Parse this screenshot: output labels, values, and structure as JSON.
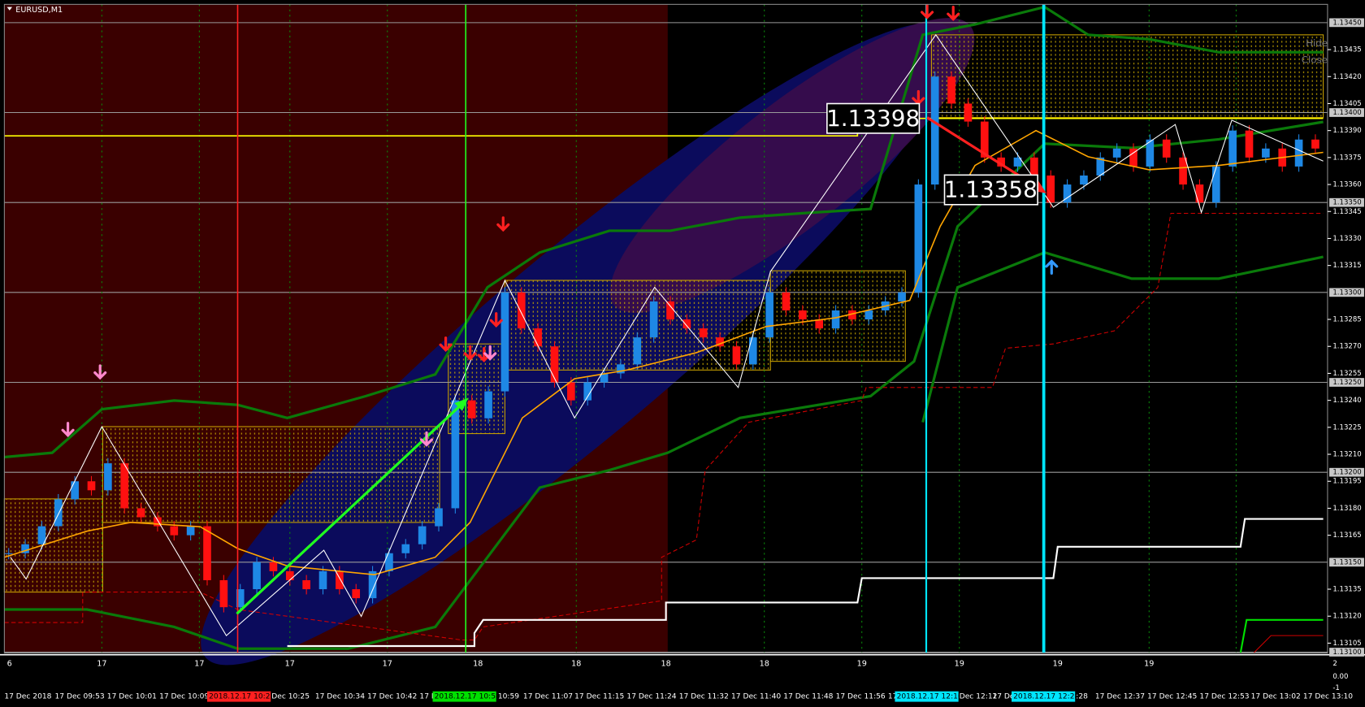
{
  "title": "EURUSD,M1",
  "buttons": {
    "hide": "Hide",
    "close": "Close"
  },
  "price_labels": [
    "1.13398",
    "1.13358"
  ],
  "chart_data": {
    "type": "candlestick",
    "closes": [
      1.13155,
      1.1316,
      1.1317,
      1.13185,
      1.13195,
      1.1319,
      1.13205,
      1.1318,
      1.13175,
      1.1317,
      1.13165,
      1.1317,
      1.1314,
      1.13125,
      1.13135,
      1.1315,
      1.13145,
      1.1314,
      1.13135,
      1.13145,
      1.13135,
      1.1313,
      1.13145,
      1.13155,
      1.1316,
      1.1317,
      1.1318,
      1.1324,
      1.1323,
      1.13245,
      1.133,
      1.1328,
      1.1327,
      1.1325,
      1.1324,
      1.1325,
      1.13255,
      1.1326,
      1.13275,
      1.13295,
      1.13285,
      1.1328,
      1.13275,
      1.1327,
      1.1326,
      1.13275,
      1.133,
      1.1329,
      1.13285,
      1.1328,
      1.1329,
      1.13285,
      1.1329,
      1.13295,
      1.133,
      1.1336,
      1.1342,
      1.13405,
      1.13395,
      1.13375,
      1.1337,
      1.13375,
      1.13365,
      1.1335,
      1.1336,
      1.13365,
      1.13375,
      1.1338,
      1.1337,
      1.13385,
      1.13375,
      1.1336,
      1.1335,
      1.1337,
      1.1339,
      1.13375,
      1.1338,
      1.1337,
      1.13385,
      1.1338
    ],
    "up_color": "#1e88e5",
    "down_color": "#ff1010",
    "ylim": [
      1.131,
      1.1345
    ],
    "yticks": [
      {
        "value": 1.13435,
        "label": "1.13435"
      },
      {
        "value": 1.1342,
        "label": "1.13420"
      },
      {
        "value": 1.13405,
        "label": "1.13405"
      },
      {
        "value": 1.1339,
        "label": "1.13390"
      },
      {
        "value": 1.13375,
        "label": "1.13375"
      },
      {
        "value": 1.1336,
        "label": "1.13360"
      },
      {
        "value": 1.13345,
        "label": "1.13345"
      },
      {
        "value": 1.1333,
        "label": "1.13330"
      },
      {
        "value": 1.13315,
        "label": "1.13315"
      },
      {
        "value": 1.13285,
        "label": "1.13285"
      },
      {
        "value": 1.1327,
        "label": "1.13270"
      },
      {
        "value": 1.13255,
        "label": "1.13255"
      },
      {
        "value": 1.1324,
        "label": "1.13240"
      },
      {
        "value": 1.13225,
        "label": "1.13225"
      },
      {
        "value": 1.1321,
        "label": "1.13210"
      },
      {
        "value": 1.13195,
        "label": "1.13195"
      },
      {
        "value": 1.1318,
        "label": "1.13180"
      },
      {
        "value": 1.13165,
        "label": "1.13165"
      },
      {
        "value": 1.13135,
        "label": "1.13135"
      },
      {
        "value": 1.1312,
        "label": "1.13120"
      },
      {
        "value": 1.13105,
        "label": "1.13105"
      }
    ],
    "levels": [
      {
        "value": 1.1345,
        "label": "1.13450"
      },
      {
        "value": 1.134,
        "label": "1.13400"
      },
      {
        "value": 1.1335,
        "label": "1.13350"
      },
      {
        "value": 1.133,
        "label": "1.13300"
      },
      {
        "value": 1.1325,
        "label": "1.13250"
      },
      {
        "value": 1.132,
        "label": "1.13200"
      },
      {
        "value": 1.1315,
        "label": "1.13150"
      },
      {
        "value": 1.131,
        "label": "1.13100"
      }
    ]
  },
  "sub_axis": [
    "2",
    "0.00",
    "-1"
  ],
  "day_labels": [
    "6",
    "17",
    "17",
    "17",
    "17",
    "18",
    "18",
    "18",
    "18",
    "19",
    "19",
    "19",
    "19"
  ],
  "time_labels": [
    {
      "text": "17 Dec 2018"
    },
    {
      "text": "17 Dec 09:53"
    },
    {
      "text": "17 Dec 10:01"
    },
    {
      "text": "17 Dec 10:09"
    },
    {
      "text": "2018.12.17 10:21",
      "highlight": "#ff2020"
    },
    {
      "text": "Dec 10:25"
    },
    {
      "text": "17 Dec 10:34"
    },
    {
      "text": "17 Dec 10:42"
    },
    {
      "text": "17 D"
    },
    {
      "text": "2018.12.17 10:58",
      "highlight": "#00e000"
    },
    {
      "text": "10:59"
    },
    {
      "text": "17 Dec 11:07"
    },
    {
      "text": "17 Dec 11:15"
    },
    {
      "text": "17 Dec 11:24"
    },
    {
      "text": "17 Dec 11:32"
    },
    {
      "text": "17 Dec 11:40"
    },
    {
      "text": "17 Dec 11:48"
    },
    {
      "text": "17 Dec 11:56"
    },
    {
      "text": "17 "
    },
    {
      "text": "2018.12.17 12:10",
      "highlight": "#00e5ff"
    },
    {
      "text": "Dec 12:12"
    },
    {
      "text": "17 Dec"
    },
    {
      "text": "2018.12.17 12:28",
      "highlight": "#00e5ff"
    },
    {
      "text": ":28"
    },
    {
      "text": "17 Dec 12:37"
    },
    {
      "text": "17 Dec 12:45"
    },
    {
      "text": "17 Dec 12:53"
    },
    {
      "text": "17 Dec 13:02"
    },
    {
      "text": "17 Dec 13:10"
    }
  ]
}
